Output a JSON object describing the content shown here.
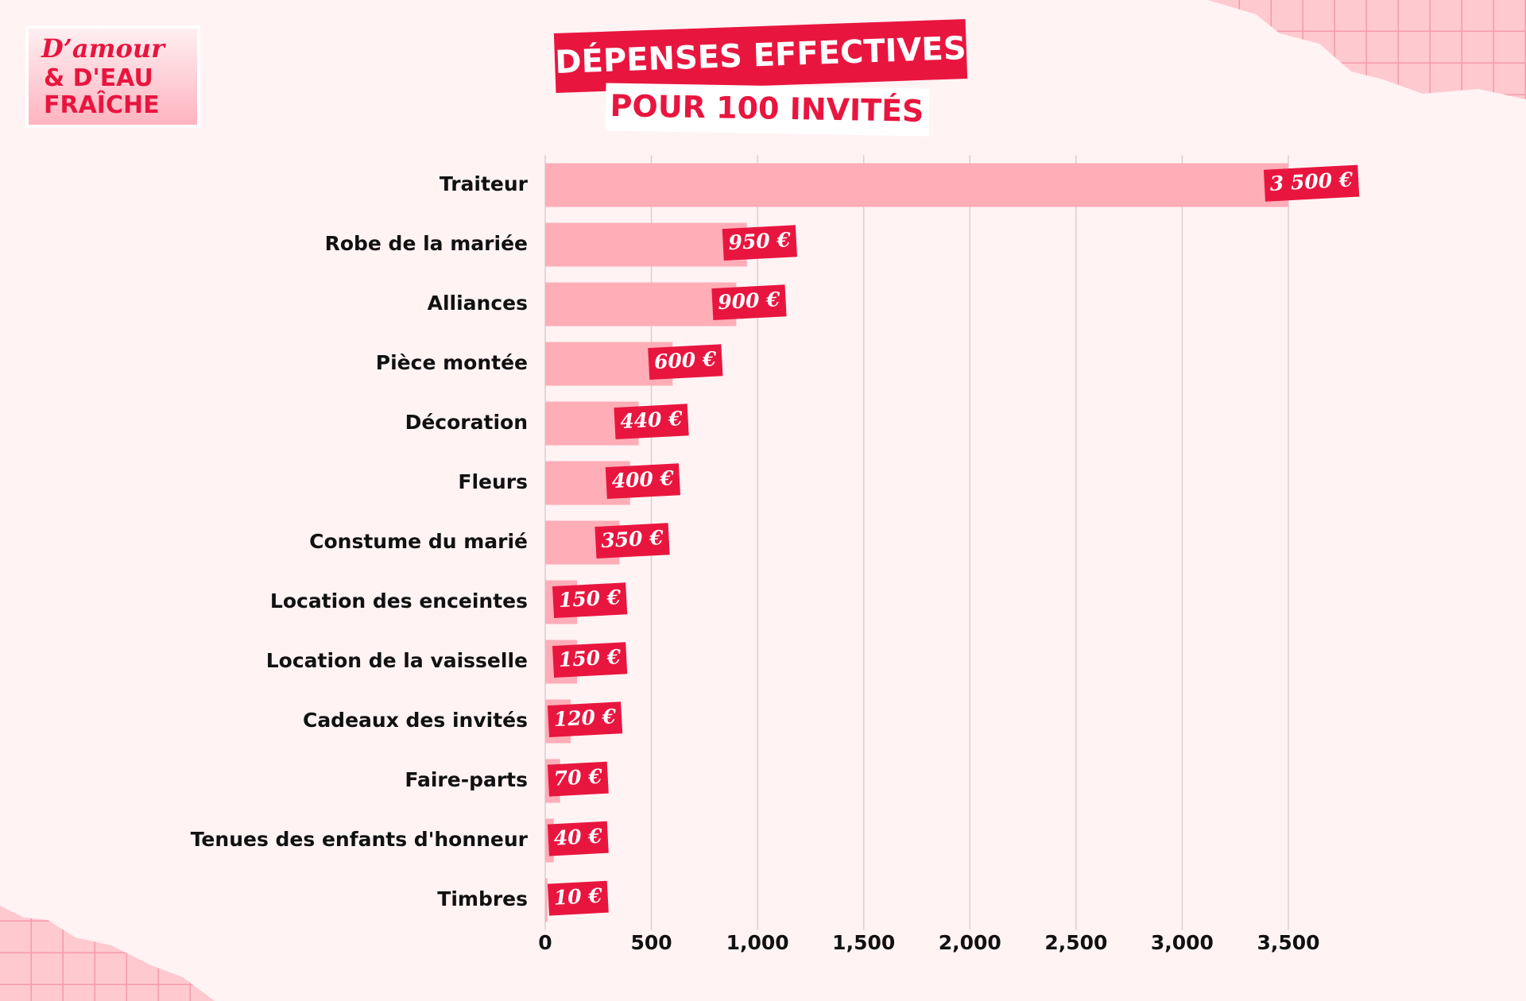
{
  "logo": [
    "D’amour",
    "& D'EAU",
    "FRAÎCHE"
  ],
  "chart_data": {
    "type": "bar",
    "orientation": "horizontal",
    "title": "DÉPENSES EFFECTIVES",
    "subtitle": "POUR 100 INVITÉS",
    "categories": [
      "Traiteur",
      "Robe de la mariée",
      "Alliances",
      "Pièce montée",
      "Décoration",
      "Fleurs",
      "Constume du marié",
      "Location des enceintes",
      "Location de la vaisselle",
      "Cadeaux des invités",
      "Faire-parts",
      "Tenues des enfants d'honneur",
      "Timbres"
    ],
    "values": [
      3500,
      950,
      900,
      600,
      440,
      400,
      350,
      150,
      150,
      120,
      70,
      40,
      10
    ],
    "value_labels": [
      "3 500 €",
      "950 €",
      "900 €",
      "600 €",
      "440 €",
      "400 €",
      "350 €",
      "150 €",
      "150 €",
      "120 €",
      "70 €",
      "40 €",
      "10 €"
    ],
    "color": "#ffadb7",
    "label_color": "#e8163f",
    "xlim": [
      0,
      3500
    ],
    "xticks": [
      0,
      500,
      {
        "value": 1000,
        "label": "1,000"
      },
      {
        "value": 1500,
        "label": "1,500"
      },
      {
        "value": 2000,
        "label": "2,000"
      },
      {
        "value": 2500,
        "label": "2,500"
      },
      {
        "value": 3000,
        "label": "3,000"
      },
      {
        "value": 3500,
        "label": "3,500"
      }
    ],
    "grid": true
  }
}
